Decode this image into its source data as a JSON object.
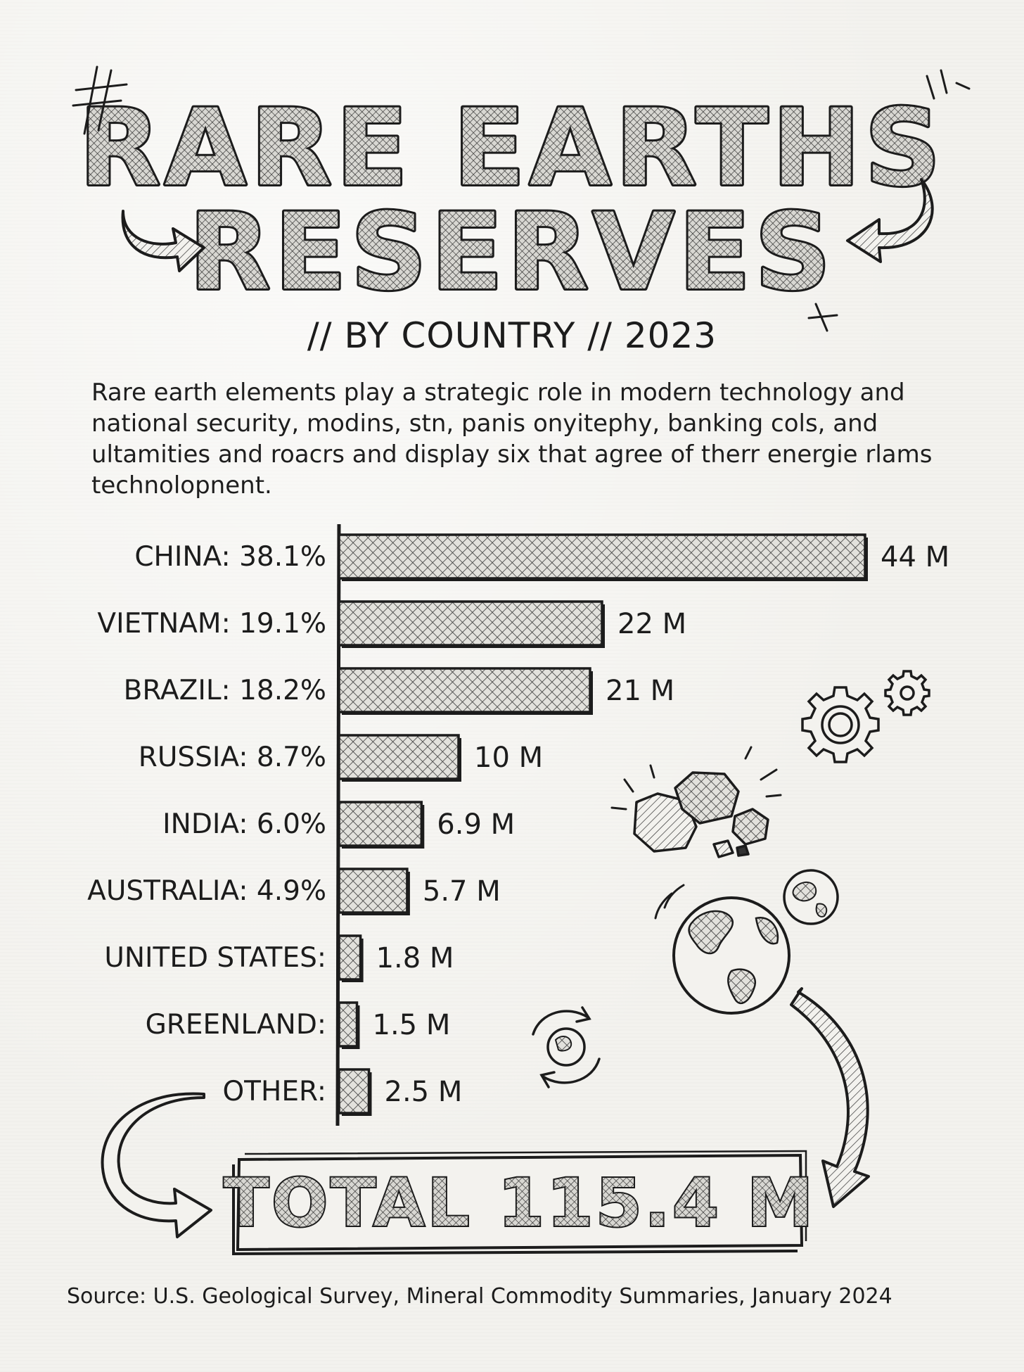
{
  "header": {
    "title_line1": "RARE EARTHS",
    "title_line2": "RESERVES",
    "subtitle": "// BY COUNTRY // 2023",
    "description": "Rare earth elements play a strategic role in modern technology and national security, modins, stn, panis onyitephy, banking cols, and ultamities and roacrs and display six that agree of therr energie rlams technolopnent."
  },
  "chart_data": {
    "type": "bar",
    "orientation": "horizontal",
    "title": "RARE EARTHS RESERVES",
    "subtitle": "// BY COUNTRY // 2023",
    "unit": "M",
    "categories": [
      "CHINA",
      "VIETNAM",
      "BRAZIL",
      "RUSSIA",
      "INDIA",
      "AUSTRALIA",
      "UNITED STATES",
      "GREENLAND",
      "OTHER"
    ],
    "labels": [
      "CHINA: 38.1%",
      "VIETNAM: 19.1%",
      "BRAZIL: 18.2%",
      "RUSSIA: 8.7%",
      "INDIA: 6.0%",
      "AUSTRALIA: 4.9%",
      "UNITED STATES:",
      "GREENLAND:",
      "OTHER:"
    ],
    "values": [
      44,
      22,
      21,
      10,
      6.9,
      5.7,
      1.8,
      1.5,
      2.5
    ],
    "value_labels": [
      "44 M",
      "22 M",
      "21 M",
      "10 M",
      "6.9 M",
      "5.7 M",
      "1.8 M",
      "1.5 M",
      "2.5 M"
    ],
    "xlim": [
      0,
      44
    ],
    "grid": false,
    "legend": "none",
    "total_label": "TOTAL 115.4 M"
  },
  "footer": {
    "source": "Source: U.S. Geological Survey, Mineral Commodity Summaries, January 2024"
  },
  "decorations": {
    "icons": [
      "gears-icon",
      "rocks-icon",
      "globe-icon",
      "small-globe-icon",
      "recycle-globe-icon",
      "curved-arrow-icon",
      "hash-doodle-icon"
    ]
  },
  "colors": {
    "ink": "#1c1c1c",
    "paper": "#f3f2ee",
    "hatch_dark": "#3a3a3a",
    "title_fill": "#cfcfcf"
  }
}
